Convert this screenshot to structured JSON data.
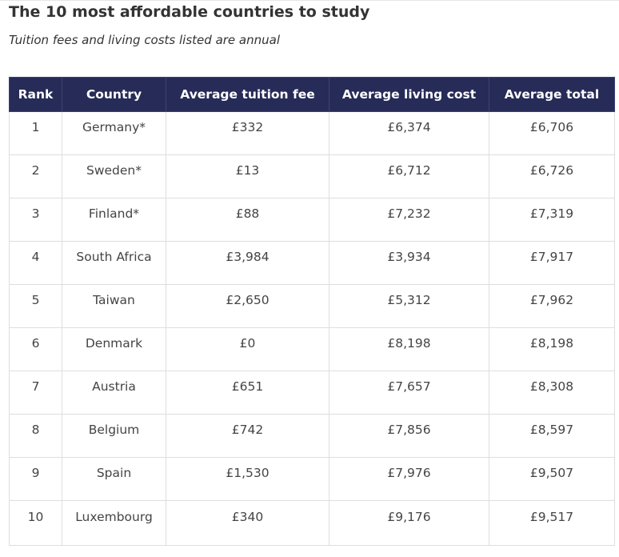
{
  "title": "The 10 most affordable countries to study",
  "subtitle": "Tuition fees and living costs listed are annual",
  "table": {
    "headers": [
      "Rank",
      "Country",
      "Average tuition fee",
      "Average living cost",
      "Average total"
    ],
    "rows": [
      [
        "1",
        "Germany*",
        "£332",
        "£6,374",
        "£6,706"
      ],
      [
        "2",
        "Sweden*",
        "£13",
        "£6,712",
        "£6,726"
      ],
      [
        "3",
        "Finland*",
        "£88",
        "£7,232",
        "£7,319"
      ],
      [
        "4",
        "South Africa",
        "£3,984",
        "£3,934",
        "£7,917"
      ],
      [
        "5",
        "Taiwan",
        "£2,650",
        "£5,312",
        "£7,962"
      ],
      [
        "6",
        "Denmark",
        "£0",
        "£8,198",
        "£8,198"
      ],
      [
        "7",
        "Austria",
        "£651",
        "£7,657",
        "£8,308"
      ],
      [
        "8",
        "Belgium",
        "£742",
        "£7,856",
        "£8,597"
      ],
      [
        "9",
        "Spain",
        "£1,530",
        "£7,976",
        "£9,507"
      ],
      [
        "10",
        "Luxembourg",
        "£340",
        "£9,176",
        "£9,517"
      ]
    ]
  },
  "colors": {
    "header_background": "#262b57",
    "header_text": "#ffffff",
    "cell_border": "#dedede"
  }
}
